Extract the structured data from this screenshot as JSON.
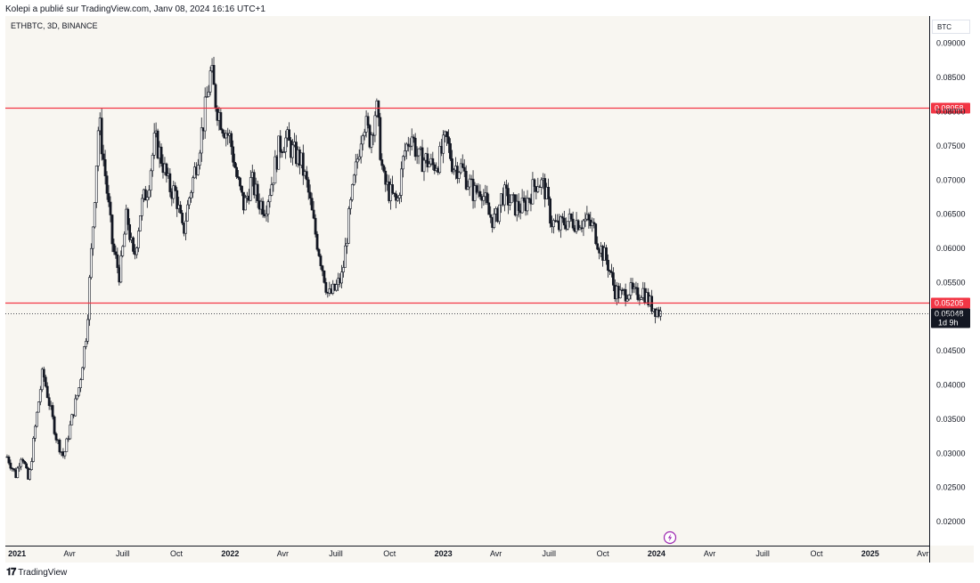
{
  "header": {
    "published_by": "Kolepi a publié sur TradingView.com, Janv 08, 2024 16:16 UTC+1"
  },
  "symbol_label": "ETHBTC, 3D, BINANCE",
  "currency_label": "BTC",
  "footer": {
    "logo_icon": "tradingview-logo-icon",
    "logo_text": "TradingView"
  },
  "colors": {
    "background": "#f8f6f1",
    "candle": "#131722",
    "level_line": "#f23645",
    "last_price_tag": "#131722",
    "lightning_icon": "#9c27b0"
  },
  "icons": {
    "bottom_marker": "lightning-icon"
  },
  "chart_data": {
    "type": "candlestick",
    "title": "ETHBTC, 3D, BINANCE",
    "ylim": [
      0.0165,
      0.094
    ],
    "xlim": [
      "2020-12-12",
      "2025-04-12"
    ],
    "y_ticks": [
      "0.09000",
      "0.08500",
      "0.08000",
      "0.07500",
      "0.07000",
      "0.06500",
      "0.06000",
      "0.05500",
      "0.05000",
      "0.04500",
      "0.04000",
      "0.03500",
      "0.03000",
      "0.02500",
      "0.02000"
    ],
    "x_ticks": [
      {
        "label": "2021",
        "date": "2021-01-01",
        "bold": true
      },
      {
        "label": "Avr",
        "date": "2021-04-01",
        "bold": false
      },
      {
        "label": "Juill",
        "date": "2021-07-01",
        "bold": false
      },
      {
        "label": "Oct",
        "date": "2021-10-01",
        "bold": false
      },
      {
        "label": "2022",
        "date": "2022-01-01",
        "bold": true
      },
      {
        "label": "Avr",
        "date": "2022-04-01",
        "bold": false
      },
      {
        "label": "Juill",
        "date": "2022-07-01",
        "bold": false
      },
      {
        "label": "Oct",
        "date": "2022-10-01",
        "bold": false
      },
      {
        "label": "2023",
        "date": "2023-01-01",
        "bold": true
      },
      {
        "label": "Avr",
        "date": "2023-04-01",
        "bold": false
      },
      {
        "label": "Juill",
        "date": "2023-07-01",
        "bold": false
      },
      {
        "label": "Oct",
        "date": "2023-10-01",
        "bold": false
      },
      {
        "label": "2024",
        "date": "2024-01-01",
        "bold": true
      },
      {
        "label": "Avr",
        "date": "2024-04-01",
        "bold": false
      },
      {
        "label": "Juill",
        "date": "2024-07-01",
        "bold": false
      },
      {
        "label": "Oct",
        "date": "2024-10-01",
        "bold": false
      },
      {
        "label": "2025",
        "date": "2025-01-01",
        "bold": true
      },
      {
        "label": "Avr",
        "date": "2025-04-01",
        "bold": false
      }
    ],
    "horizontal_levels": [
      {
        "price": 0.08058,
        "label": "0.08058",
        "color": "#f23645"
      },
      {
        "price": 0.05205,
        "label": "0.05205",
        "color": "#f23645"
      }
    ],
    "last_price": {
      "price": 0.05048,
      "label": "0.05048",
      "countdown": "1d 9h"
    },
    "close_path": [
      [
        "2020-12-15",
        0.0295
      ],
      [
        "2020-12-30",
        0.0268
      ],
      [
        "2021-01-09",
        0.03
      ],
      [
        "2021-01-21",
        0.0258
      ],
      [
        "2021-02-02",
        0.0345
      ],
      [
        "2021-02-14",
        0.042
      ],
      [
        "2021-02-26",
        0.037
      ],
      [
        "2021-03-10",
        0.032
      ],
      [
        "2021-03-22",
        0.0295
      ],
      [
        "2021-04-06",
        0.0355
      ],
      [
        "2021-04-18",
        0.04
      ],
      [
        "2021-04-30",
        0.048
      ],
      [
        "2021-05-12",
        0.065
      ],
      [
        "2021-05-21",
        0.079
      ],
      [
        "2021-06-02",
        0.07
      ],
      [
        "2021-06-14",
        0.06
      ],
      [
        "2021-06-26",
        0.056
      ],
      [
        "2021-07-08",
        0.065
      ],
      [
        "2021-07-20",
        0.058
      ],
      [
        "2021-08-01",
        0.066
      ],
      [
        "2021-08-13",
        0.069
      ],
      [
        "2021-08-25",
        0.076
      ],
      [
        "2021-09-06",
        0.073
      ],
      [
        "2021-09-18",
        0.069
      ],
      [
        "2021-09-30",
        0.068
      ],
      [
        "2021-10-12",
        0.062
      ],
      [
        "2021-10-24",
        0.068
      ],
      [
        "2021-11-05",
        0.073
      ],
      [
        "2021-11-17",
        0.079
      ],
      [
        "2021-11-29",
        0.086
      ],
      [
        "2021-12-08",
        0.081
      ],
      [
        "2021-12-20",
        0.078
      ],
      [
        "2022-01-01",
        0.076
      ],
      [
        "2022-01-13",
        0.07
      ],
      [
        "2022-01-25",
        0.066
      ],
      [
        "2022-02-06",
        0.07
      ],
      [
        "2022-02-18",
        0.067
      ],
      [
        "2022-03-02",
        0.066
      ],
      [
        "2022-03-14",
        0.07
      ],
      [
        "2022-03-26",
        0.075
      ],
      [
        "2022-04-07",
        0.076
      ],
      [
        "2022-04-19",
        0.074
      ],
      [
        "2022-05-01",
        0.073
      ],
      [
        "2022-05-13",
        0.069
      ],
      [
        "2022-05-25",
        0.063
      ],
      [
        "2022-06-06",
        0.058
      ],
      [
        "2022-06-18",
        0.053
      ],
      [
        "2022-06-30",
        0.054
      ],
      [
        "2022-07-12",
        0.056
      ],
      [
        "2022-07-24",
        0.065
      ],
      [
        "2022-08-05",
        0.072
      ],
      [
        "2022-08-17",
        0.079
      ],
      [
        "2022-08-29",
        0.076
      ],
      [
        "2022-09-08",
        0.081
      ],
      [
        "2022-09-20",
        0.07
      ],
      [
        "2022-10-02",
        0.068
      ],
      [
        "2022-10-14",
        0.0665
      ],
      [
        "2022-10-26",
        0.074
      ],
      [
        "2022-11-07",
        0.077
      ],
      [
        "2022-11-19",
        0.073
      ],
      [
        "2022-12-01",
        0.073
      ],
      [
        "2022-12-13",
        0.072
      ],
      [
        "2022-12-25",
        0.073
      ],
      [
        "2023-01-06",
        0.076
      ],
      [
        "2023-01-18",
        0.072
      ],
      [
        "2023-01-30",
        0.072
      ],
      [
        "2023-02-11",
        0.07
      ],
      [
        "2023-02-23",
        0.068
      ],
      [
        "2023-03-07",
        0.069
      ],
      [
        "2023-03-19",
        0.065
      ],
      [
        "2023-03-31",
        0.064
      ],
      [
        "2023-04-12",
        0.068
      ],
      [
        "2023-04-24",
        0.067
      ],
      [
        "2023-05-06",
        0.066
      ],
      [
        "2023-05-18",
        0.066
      ],
      [
        "2023-05-30",
        0.068
      ],
      [
        "2023-06-11",
        0.07
      ],
      [
        "2023-06-23",
        0.069
      ],
      [
        "2023-07-05",
        0.064
      ],
      [
        "2023-07-17",
        0.063
      ],
      [
        "2023-07-29",
        0.064
      ],
      [
        "2023-08-10",
        0.064
      ],
      [
        "2023-08-22",
        0.064
      ],
      [
        "2023-09-03",
        0.064
      ],
      [
        "2023-09-15",
        0.063
      ],
      [
        "2023-09-27",
        0.06
      ],
      [
        "2023-10-09",
        0.058
      ],
      [
        "2023-10-21",
        0.054
      ],
      [
        "2023-11-02",
        0.053
      ],
      [
        "2023-11-14",
        0.054
      ],
      [
        "2023-11-26",
        0.053
      ],
      [
        "2023-12-08",
        0.054
      ],
      [
        "2023-12-20",
        0.052
      ],
      [
        "2024-01-08",
        0.05048
      ]
    ]
  }
}
